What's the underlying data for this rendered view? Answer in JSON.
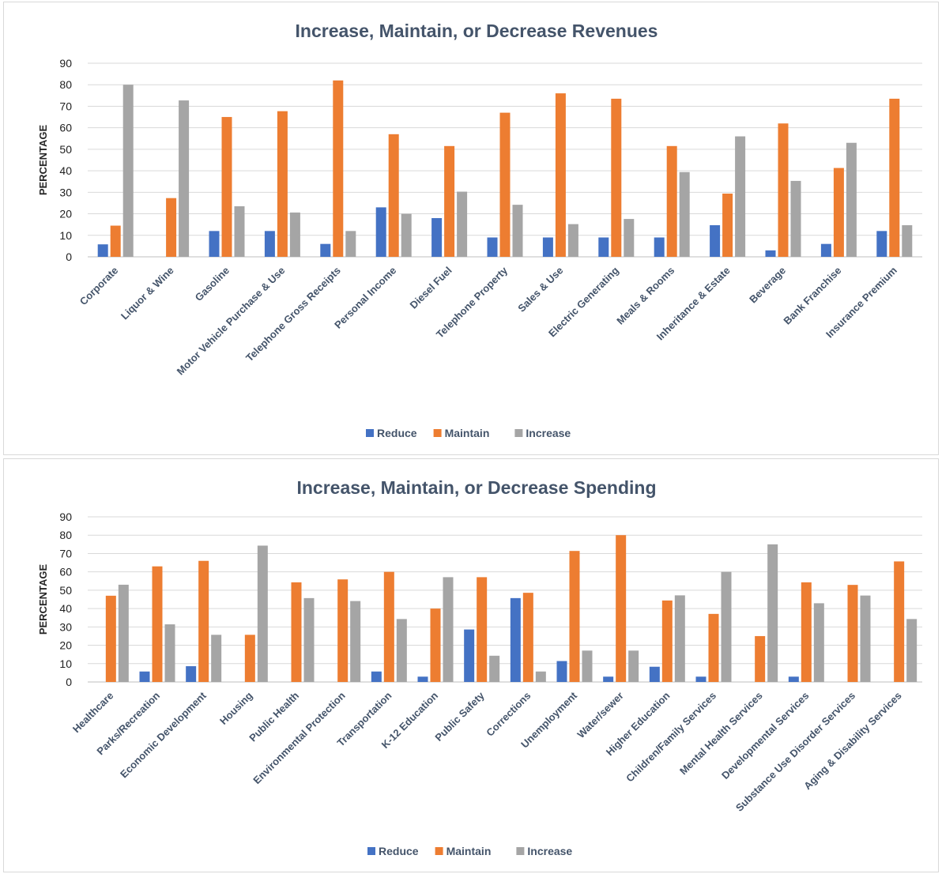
{
  "colors": {
    "reduce": "#4472c4",
    "maintain": "#ed7d31",
    "increase": "#a5a5a5"
  },
  "chart_data": [
    {
      "type": "bar",
      "title": "Increase, Maintain, or Decrease Revenues",
      "xlabel": "",
      "ylabel": "PERCENTAGE",
      "ylim": [
        0,
        90
      ],
      "yticks": [
        0,
        10,
        20,
        30,
        40,
        50,
        60,
        70,
        80,
        90
      ],
      "grid": true,
      "legend_position": "bottom",
      "categories": [
        "Corporate",
        "Liquor & Wine",
        "Gasoline",
        "Motor Vehicle Purchase & Use",
        "Telephone Gross Receipts",
        "Personal Income",
        "Diesel Fuel",
        "Telephone Property",
        "Sales & Use",
        "Electric Generating",
        "Meals & Rooms",
        "Inheritance & Estate",
        "Beverage",
        "Bank Franchise",
        "Insurance Premium"
      ],
      "series": [
        {
          "name": "Reduce",
          "values": [
            5.8,
            0,
            12,
            12,
            6,
            23,
            18,
            9,
            9,
            9,
            9,
            14.7,
            3,
            6,
            12
          ]
        },
        {
          "name": "Maintain",
          "values": [
            14.5,
            27.3,
            65,
            67.7,
            82,
            57,
            51.5,
            67,
            76,
            73.5,
            51.5,
            29.4,
            62,
            41.3,
            73.5
          ]
        },
        {
          "name": "Increase",
          "values": [
            80,
            72.7,
            23.5,
            20.6,
            12,
            20,
            30.3,
            24.2,
            15.2,
            17.6,
            39.4,
            56,
            35.3,
            53,
            14.7
          ]
        }
      ]
    },
    {
      "type": "bar",
      "title": "Increase, Maintain, or Decrease Spending",
      "xlabel": "",
      "ylabel": "PERCENTAGE",
      "ylim": [
        0,
        90
      ],
      "yticks": [
        0,
        10,
        20,
        30,
        40,
        50,
        60,
        70,
        80,
        90
      ],
      "grid": true,
      "legend_position": "bottom",
      "categories": [
        "Healthcare",
        "Parks/Recreation",
        "Economic Development",
        "Housing",
        "Public Health",
        "Environmental Protection",
        "Transportation",
        "K-12 Education",
        "Public Safety",
        "Corrections",
        "Unemployment",
        "Water/sewer",
        "Higher Education",
        "Children/Family Services",
        "Mental Health Services",
        "Developmental Services",
        "Substance Use Disorder Services",
        "Aging & Disability Services"
      ],
      "series": [
        {
          "name": "Reduce",
          "values": [
            0,
            5.7,
            8.6,
            0,
            0,
            0,
            5.7,
            2.9,
            28.6,
            45.7,
            11.4,
            2.9,
            8.3,
            2.9,
            0,
            2.9,
            0,
            0
          ]
        },
        {
          "name": "Maintain",
          "values": [
            47,
            63,
            66,
            25.7,
            54.3,
            55.9,
            60,
            40,
            57.1,
            48.6,
            71.4,
            80,
            44.4,
            37.1,
            25,
            54.3,
            52.9,
            65.7
          ]
        },
        {
          "name": "Increase",
          "values": [
            53,
            31.4,
            25.7,
            74.3,
            45.7,
            44.1,
            34.3,
            57.1,
            14.3,
            5.7,
            17.1,
            17.1,
            47.2,
            60,
            75,
            42.9,
            47.1,
            34.3
          ]
        }
      ]
    }
  ]
}
